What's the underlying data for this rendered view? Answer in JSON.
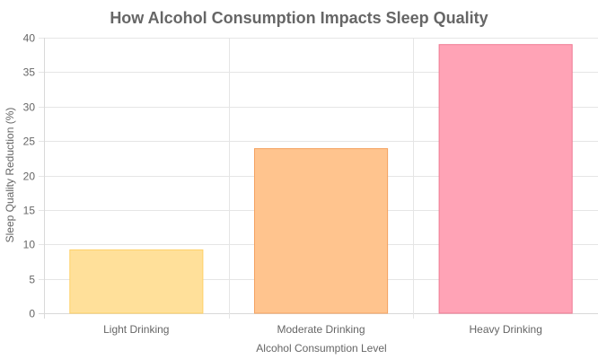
{
  "chart_data": {
    "type": "bar",
    "title": "How Alcohol Consumption Impacts Sleep Quality",
    "xlabel": "Alcohol Consumption Level",
    "ylabel": "Sleep Quality Reduction (%)",
    "categories": [
      "Light Drinking",
      "Moderate Drinking",
      "Heavy Drinking"
    ],
    "values": [
      9.2,
      23.9,
      39
    ],
    "ylim": [
      0,
      40
    ],
    "yticks": [
      "0",
      "5",
      "10",
      "15",
      "20",
      "25",
      "30",
      "35",
      "40"
    ],
    "grid": true,
    "legend": "none",
    "colors": {
      "fills": [
        "#ffe09a",
        "#ffc48e",
        "#ffa3b6"
      ],
      "borders": [
        "#ffd166",
        "#f4a261",
        "#ef7a93"
      ]
    }
  }
}
